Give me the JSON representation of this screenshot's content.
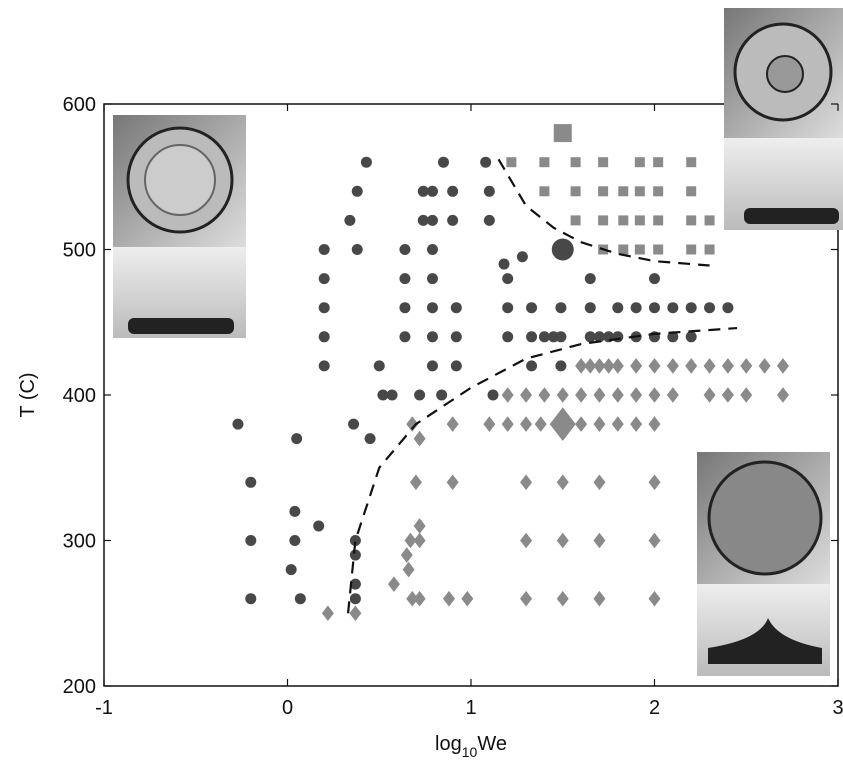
{
  "chart_data": {
    "type": "scatter",
    "ylabel": "T (C)",
    "xlabel": [
      "log",
      "10",
      "We"
    ],
    "xlim": [
      -1,
      3
    ],
    "ylim": [
      200,
      600
    ],
    "xticks": [
      -1,
      0,
      1,
      2,
      3
    ],
    "yticks": [
      200,
      300,
      400,
      500,
      600
    ],
    "series": [
      {
        "marker": "circle",
        "color": "#484848",
        "size": 5.5,
        "x": [
          -0.27,
          -0.2,
          -0.2,
          -0.2,
          0.05,
          0.04,
          0.04,
          0.02,
          0.07,
          0.17,
          0.2,
          0.2,
          0.2,
          0.2,
          0.2,
          0.34,
          0.38,
          0.38,
          0.43,
          0.36,
          0.45,
          0.37,
          0.37,
          0.37,
          0.37,
          0.5,
          0.52,
          0.57,
          0.64,
          0.64,
          0.64,
          0.64,
          0.74,
          0.74,
          0.72,
          0.79,
          0.79,
          0.79,
          0.79,
          0.79,
          0.79,
          0.79,
          0.84,
          0.85,
          0.9,
          0.9,
          0.92,
          0.92,
          0.92,
          1.08,
          1.1,
          1.1,
          1.12,
          1.18,
          1.28,
          1.2,
          1.2,
          1.2,
          1.33,
          1.33,
          1.33,
          1.4,
          1.45,
          1.49,
          1.49,
          1.49,
          1.65,
          1.65,
          1.65,
          1.7,
          1.75,
          1.8,
          1.8,
          1.9,
          1.9,
          2.0,
          2.0,
          2.0,
          2.1,
          2.1,
          2.2,
          2.2,
          2.3,
          2.4
        ],
        "values": [
          380,
          340,
          300,
          260,
          370,
          320,
          300,
          280,
          260,
          310,
          500,
          480,
          460,
          440,
          420,
          520,
          540,
          500,
          560,
          380,
          370,
          300,
          290,
          270,
          260,
          420,
          400,
          400,
          500,
          480,
          460,
          440,
          540,
          520,
          400,
          540,
          520,
          500,
          480,
          460,
          440,
          420,
          400,
          560,
          540,
          520,
          460,
          440,
          420,
          560,
          540,
          520,
          400,
          490,
          495,
          480,
          460,
          440,
          460,
          440,
          420,
          440,
          440,
          460,
          440,
          420,
          480,
          460,
          440,
          440,
          440,
          460,
          440,
          460,
          440,
          480,
          460,
          440,
          460,
          440,
          460,
          440,
          460,
          460
        ]
      },
      {
        "marker": "square",
        "color": "#8a8a8a",
        "size": 5,
        "x": [
          1.22,
          1.4,
          1.57,
          1.72,
          1.92,
          2.02,
          2.2,
          1.4,
          1.57,
          1.72,
          1.83,
          1.92,
          2.02,
          2.2,
          1.57,
          1.72,
          1.83,
          1.92,
          2.02,
          2.2,
          2.3,
          1.72,
          1.83,
          1.92,
          2.02,
          2.2,
          2.3
        ],
        "values": [
          560,
          560,
          560,
          560,
          560,
          560,
          560,
          540,
          540,
          540,
          540,
          540,
          540,
          540,
          520,
          520,
          520,
          520,
          520,
          520,
          520,
          500,
          500,
          500,
          500,
          500,
          500
        ]
      },
      {
        "marker": "diamond",
        "color": "#8a8a8a",
        "size": 6,
        "x": [
          1.6,
          1.65,
          1.7,
          1.75,
          1.8,
          1.9,
          2.0,
          2.1,
          2.2,
          2.3,
          2.4,
          2.5,
          2.6,
          2.7,
          1.2,
          1.3,
          1.4,
          1.5,
          1.6,
          1.7,
          1.8,
          1.9,
          2.0,
          2.1,
          2.3,
          2.4,
          2.5,
          2.7,
          0.68,
          0.9,
          1.1,
          1.2,
          1.3,
          1.38,
          1.6,
          1.7,
          1.8,
          1.9,
          2.0,
          0.7,
          0.9,
          1.3,
          1.5,
          1.7,
          2.0,
          0.67,
          0.72,
          1.3,
          1.5,
          1.7,
          2.0,
          0.68,
          0.72,
          0.88,
          0.98,
          1.3,
          1.5,
          1.7,
          2.0,
          0.22,
          0.37,
          0.58,
          0.66,
          0.72,
          0.65,
          0.72
        ],
        "values": [
          420,
          420,
          420,
          420,
          420,
          420,
          420,
          420,
          420,
          420,
          420,
          420,
          420,
          420,
          400,
          400,
          400,
          400,
          400,
          400,
          400,
          400,
          400,
          400,
          400,
          400,
          400,
          400,
          380,
          380,
          380,
          380,
          380,
          380,
          380,
          380,
          380,
          380,
          380,
          340,
          340,
          340,
          340,
          340,
          340,
          300,
          300,
          300,
          300,
          300,
          300,
          260,
          260,
          260,
          260,
          260,
          260,
          260,
          260,
          250,
          250,
          270,
          280,
          310,
          290,
          370
        ]
      },
      {
        "marker": "circle",
        "color": "#484848",
        "size": 11,
        "x": [
          1.5
        ],
        "values": [
          500
        ]
      },
      {
        "marker": "square",
        "color": "#8a8a8a",
        "size": 9,
        "x": [
          1.5
        ],
        "values": [
          580
        ]
      },
      {
        "marker": "diamond",
        "color": "#8a8a8a",
        "size": 13,
        "x": [
          1.5
        ],
        "values": [
          380
        ]
      }
    ],
    "lines": [
      {
        "color": "#111",
        "dash": "12,8",
        "x": [
          0.33,
          0.37,
          0.5,
          0.7,
          1.0,
          1.3,
          1.6,
          2.0,
          2.45
        ],
        "values": [
          250,
          300,
          350,
          380,
          405,
          425,
          435,
          442,
          446
        ]
      },
      {
        "color": "#111",
        "dash": "12,8",
        "x": [
          1.15,
          1.3,
          1.45,
          1.6,
          1.8,
          2.0,
          2.3
        ],
        "values": [
          562,
          530,
          515,
          505,
          497,
          492,
          489
        ]
      }
    ]
  }
}
